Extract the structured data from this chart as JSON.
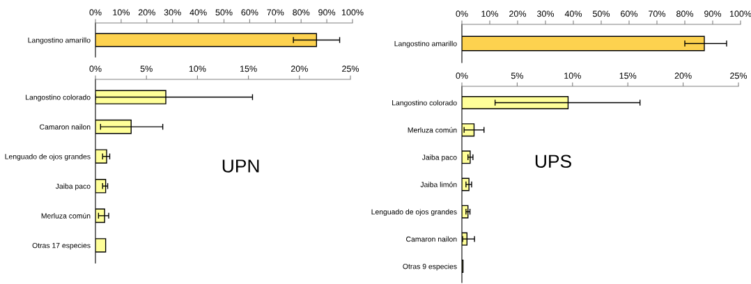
{
  "chart_data": [
    {
      "type": "bar",
      "orientation": "horizontal",
      "categories": [
        "Langostino amarillo"
      ],
      "values": [
        86
      ],
      "errors": [
        [
          77,
          95
        ]
      ],
      "color": "#fdd24f",
      "xlim": [
        0,
        100
      ],
      "xticks": [
        {
          "value": 0,
          "label": "0%"
        },
        {
          "value": 10,
          "label": "10%"
        },
        {
          "value": 20,
          "label": "20%"
        },
        {
          "value": 30,
          "label": "30%"
        },
        {
          "value": 40,
          "label": "40%"
        },
        {
          "value": 50,
          "label": "50%"
        },
        {
          "value": 60,
          "label": "60%"
        },
        {
          "value": 70,
          "label": "70%"
        },
        {
          "value": 80,
          "label": "80%"
        },
        {
          "value": 90,
          "label": "90%"
        },
        {
          "value": 100,
          "label": "100%"
        }
      ],
      "grid": false,
      "legend": false
    },
    {
      "type": "bar",
      "orientation": "horizontal",
      "categories": [
        "Langostino colorado",
        "Camaron nailon",
        "Lenguado de ojos grandes",
        "Jaiba paco",
        "Merluza común",
        "Otras 17 especies"
      ],
      "values": [
        6.9,
        3.5,
        1.1,
        1.0,
        0.9,
        1.0
      ],
      "errors": [
        [
          0,
          15.4
        ],
        [
          0.5,
          6.6
        ],
        [
          0.7,
          1.4
        ],
        [
          0.7,
          1.2
        ],
        [
          0.3,
          1.3
        ],
        null
      ],
      "color": "#ffff99",
      "xlim": [
        0,
        25
      ],
      "xticks": [
        {
          "value": 0,
          "label": "0%"
        },
        {
          "value": 5,
          "label": "5%"
        },
        {
          "value": 10,
          "label": "10%"
        },
        {
          "value": 15,
          "label": "15%"
        },
        {
          "value": 20,
          "label": "20%"
        },
        {
          "value": 25,
          "label": "25%"
        }
      ],
      "annotations": [
        "UPN"
      ],
      "grid": false,
      "legend": false
    },
    {
      "type": "bar",
      "orientation": "horizontal",
      "categories": [
        "Langostino amarillo"
      ],
      "values": [
        87
      ],
      "errors": [
        [
          80,
          95
        ]
      ],
      "color": "#fdd24f",
      "xlim": [
        0,
        100
      ],
      "xticks": [
        {
          "value": 0,
          "label": "0%"
        },
        {
          "value": 10,
          "label": "10%"
        },
        {
          "value": 20,
          "label": "20%"
        },
        {
          "value": 30,
          "label": "30%"
        },
        {
          "value": 40,
          "label": "40%"
        },
        {
          "value": 50,
          "label": "50%"
        },
        {
          "value": 60,
          "label": "60%"
        },
        {
          "value": 70,
          "label": "70%"
        },
        {
          "value": 80,
          "label": "80%"
        },
        {
          "value": 90,
          "label": "90%"
        },
        {
          "value": 100,
          "label": "100%"
        }
      ],
      "grid": false,
      "legend": false
    },
    {
      "type": "bar",
      "orientation": "horizontal",
      "categories": [
        "Langostino colorado",
        "Merluza común",
        "Jaiba paco",
        "Jaiba limón",
        "Lenguado de ojos grandes",
        "Camaron nailon",
        "Otras 9 especies"
      ],
      "values": [
        9.6,
        1.1,
        0.75,
        0.64,
        0.55,
        0.46,
        0.1
      ],
      "errors": [
        [
          3.0,
          16.1
        ],
        [
          0.2,
          2.0
        ],
        [
          0.55,
          1.0
        ],
        [
          0.37,
          0.88
        ],
        [
          0.37,
          0.73
        ],
        [
          0.07,
          1.14
        ],
        null
      ],
      "color": "#ffff99",
      "xlim": [
        0,
        25
      ],
      "xticks": [
        {
          "value": 0,
          "label": "0%"
        },
        {
          "value": 5,
          "label": "5%"
        },
        {
          "value": 10,
          "label": "10%"
        },
        {
          "value": 15,
          "label": "15%"
        },
        {
          "value": 20,
          "label": "20%"
        },
        {
          "value": 25,
          "label": "25%"
        }
      ],
      "annotations": [
        "UPS"
      ],
      "grid": false,
      "legend": false
    }
  ]
}
